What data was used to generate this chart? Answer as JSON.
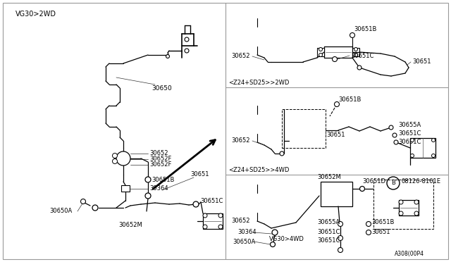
{
  "bg_color": "#ffffff",
  "line_color": "#000000",
  "fig_width": 6.4,
  "fig_height": 3.72,
  "section_labels": {
    "vg30_2wd": "VG30>2WD",
    "z24_2wd": "<Z24+SD25>>2WD",
    "z24_4wd": "<Z24+SD25>>4WD",
    "vg30_4wd": "VG30>4WD",
    "part_num": "A308(00P4"
  }
}
